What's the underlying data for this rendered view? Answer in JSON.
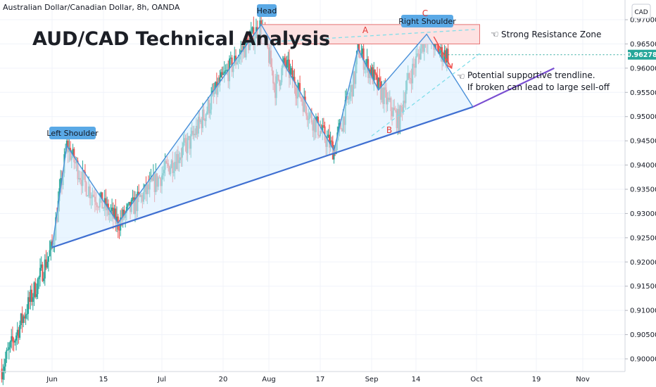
{
  "header": {
    "symbol_line": "Australian Dollar/Canadian Dollar, 8h, OANDA",
    "currency_badge": "CAD"
  },
  "overlay_title": "AUD/CAD Technical Analysis",
  "annotations": {
    "left_shoulder": "Left Shoulder",
    "head": "Head",
    "right_shoulder": "Right Shoulder",
    "resistance": "Strong Resistance Zone",
    "trendline_line1": "Potential supportive trendline.",
    "trendline_line2": "If broken can lead to large sell-off",
    "point_a": "A",
    "point_b": "B",
    "point_c": "C"
  },
  "price_tag": {
    "value": "0.96278",
    "color": "#26a69a"
  },
  "colors": {
    "bull": "#26a69a",
    "bear": "#ef5350",
    "pattern_line": "#4a90d9",
    "pattern_fill": "#dbeeff",
    "trendline": "#3f6fd1",
    "trendline_ext": "#7a4fd1",
    "channel": "#80deea",
    "zone_fill": "#fde2e2",
    "zone_border": "#e57373",
    "pill": "#5aa9e6"
  },
  "chart_data": {
    "type": "candlestick",
    "title": "Australian Dollar/Canadian Dollar, 8h, OANDA",
    "ylim": [
      0.897,
      0.978
    ],
    "y_ticks": [
      "0.97000",
      "0.96500",
      "0.96000",
      "0.95500",
      "0.95000",
      "0.94500",
      "0.94000",
      "0.93500",
      "0.93000",
      "0.92500",
      "0.92000",
      "0.91500",
      "0.91000",
      "0.90500",
      "0.90000"
    ],
    "x_ticks": [
      "Jun",
      "15",
      "Jul",
      "20",
      "Aug",
      "17",
      "Sep",
      "14",
      "Oct",
      "19",
      "Nov"
    ],
    "last_price": 0.96278,
    "pattern": "head-and-shoulders",
    "path_points": [
      {
        "date": "May 18",
        "price": 0.898
      },
      {
        "date": "Jun 1",
        "price": 0.923
      },
      {
        "date": "Jun 5",
        "price": 0.944
      },
      {
        "date": "Jun 10",
        "price": 0.936
      },
      {
        "date": "Jun 19",
        "price": 0.928
      },
      {
        "date": "Jul 1",
        "price": 0.938
      },
      {
        "date": "Jul 10",
        "price": 0.945
      },
      {
        "date": "Jul 20",
        "price": 0.958
      },
      {
        "date": "Jul 30",
        "price": 0.969
      },
      {
        "date": "Aug 3",
        "price": 0.956
      },
      {
        "date": "Aug 6",
        "price": 0.961
      },
      {
        "date": "Aug 14",
        "price": 0.95
      },
      {
        "date": "Aug 21",
        "price": 0.943
      },
      {
        "date": "Aug 27",
        "price": 0.958
      },
      {
        "date": "Aug 28",
        "price": 0.964
      },
      {
        "date": "Sep 3",
        "price": 0.956
      },
      {
        "date": "Sep 9",
        "price": 0.949
      },
      {
        "date": "Sep 11",
        "price": 0.956
      },
      {
        "date": "Sep 17",
        "price": 0.967
      },
      {
        "date": "Sep 21",
        "price": 0.963
      },
      {
        "date": "Sep 23",
        "price": 0.9628
      }
    ],
    "levels": {
      "resistance_zone": [
        0.965,
        0.969
      ],
      "left_shoulder_high": 0.944,
      "head_high": 0.969,
      "right_shoulder_high": 0.967,
      "neckline_low": 0.943
    },
    "trendline": {
      "from": [
        "Jun 1",
        0.923
      ],
      "to": [
        "Sep 30",
        0.952
      ],
      "extended_to": [
        "Oct 25",
        0.96
      ]
    }
  }
}
